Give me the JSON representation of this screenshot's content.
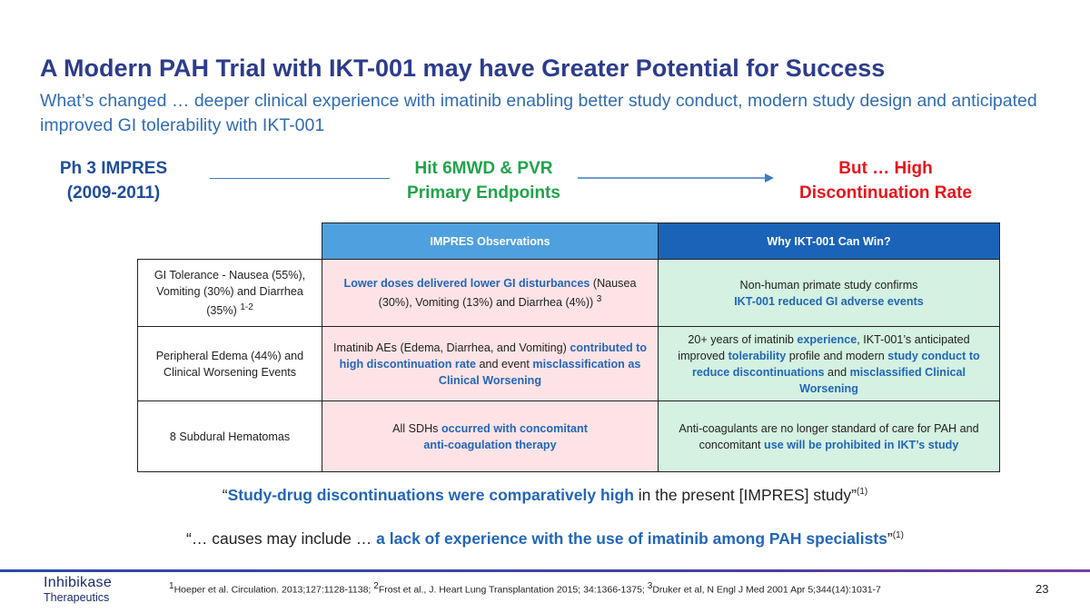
{
  "title": "A Modern PAH Trial with IKT-001 may have Greater Potential for Success",
  "subtitle": "What’s changed … deeper clinical experience with imatinib enabling better study conduct, modern study design and anticipated improved GI tolerability with IKT-001",
  "flow": {
    "step1_line1": "Ph 3 IMPRES",
    "step1_line2": "(2009-2011)",
    "step2_line1": "Hit 6MWD & PVR",
    "step2_line2": "Primary Endpoints",
    "step3_line1": "But … High",
    "step3_line2": "Discontinuation Rate"
  },
  "table": {
    "header_observations": "IMPRES Observations",
    "header_why": "Why IKT-001 Can Win?",
    "row1": {
      "label": "GI Tolerance - Nausea (55%), Vomiting (30%) and Diarrhea (35%)",
      "label_sup": "1-2",
      "obs_hl": "Lower doses delivered lower GI disturbances",
      "obs_rest": " (Nausea (30%), Vomiting (13%)  and Diarrhea (4%))",
      "obs_sup": "3",
      "why_text": "Non-human primate study confirms",
      "why_hl": "IKT-001 reduced GI adverse events"
    },
    "row2": {
      "label": "Peripheral Edema (44%) and Clinical Worsening Events",
      "obs_text1": "Imatinib AEs (Edema, Diarrhea, and Vomiting) ",
      "obs_hl1": "contributed to high discontinuation rate",
      "obs_text2": " and event ",
      "obs_hl2": "misclassification as Clinical Worsening",
      "why_text1": "20+ years of imatinib ",
      "why_hl1": "experience",
      "why_text2": ", IKT-001’s anticipated improved ",
      "why_hl2": "tolerability",
      "why_text3": " profile and modern ",
      "why_hl3": "study conduct to reduce discontinuations",
      "why_text4": " and ",
      "why_hl4": "misclassified Clinical Worsening"
    },
    "row3": {
      "label": "8 Subdural Hematomas",
      "obs_text": "All SDHs ",
      "obs_hl1": "occurred with concomitant",
      "obs_hl2": "anti-coagulation therapy",
      "why_text": "Anti-coagulants are no longer standard of care for PAH and concomitant ",
      "why_hl": "use will be prohibited in IKT’s study"
    }
  },
  "quotes": {
    "q1_open": "“",
    "q1_hl": "Study-drug discontinuations were comparatively high",
    "q1_rest": " in the present [IMPRES] study”",
    "q1_sup": "(1)",
    "q2_open": "“… causes may include … ",
    "q2_hl": "a lack of experience with the use of imatinib among PAH specialists",
    "q2_close": "”",
    "q2_sup": "(1)"
  },
  "footer": {
    "logo_name": "Inhibikase",
    "logo_sub": "Therapeutics",
    "ref1_sup": "1",
    "ref1": "Hoeper et al. Circulation. 2013;127:1128-1138; ",
    "ref2_sup": "2",
    "ref2": "Frost et al., J. Heart Lung Transplantation 2015; 34:1366-1375; ",
    "ref3_sup": "3",
    "ref3": "Druker et al, N Engl J Med  2001 Apr 5;344(14):1031-7",
    "page_number": "23"
  },
  "colors": {
    "title": "#2d3c8c",
    "subtitle": "#2f6cb5",
    "step1": "#1f4e9a",
    "step2": "#21a34a",
    "step3": "#e8141b",
    "header_obs_bg": "#4fa0de",
    "header_why_bg": "#1a63b8",
    "obs_bg": "#fde3e6",
    "why_bg": "#d4f1e1",
    "highlight": "#2266b8"
  }
}
